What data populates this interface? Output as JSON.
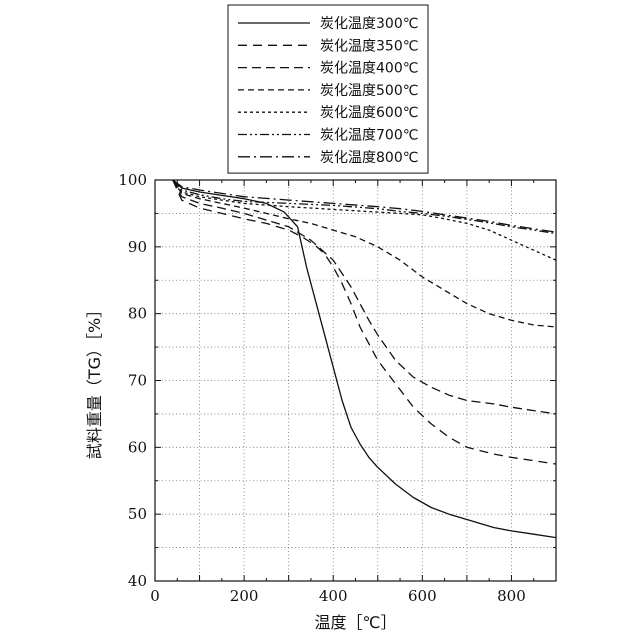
{
  "chart_data": {
    "type": "line",
    "xlabel": "温度［℃］",
    "ylabel": "試料重量（TG）［%］",
    "xlim": [
      0,
      900
    ],
    "ylim": [
      40,
      100
    ],
    "xticks": [
      0,
      200,
      400,
      600,
      800
    ],
    "yticks": [
      40,
      50,
      60,
      70,
      80,
      90,
      100
    ],
    "grid": true,
    "legend_position": "top-center",
    "series": [
      {
        "name": "炭化温度300℃",
        "dash": "",
        "x": [
          40,
          60,
          100,
          150,
          200,
          250,
          290,
          320,
          340,
          360,
          380,
          400,
          420,
          440,
          460,
          480,
          500,
          540,
          580,
          620,
          660,
          700,
          760,
          800,
          850,
          900
        ],
        "y": [
          100,
          98.8,
          98.2,
          97.7,
          97.2,
          96.5,
          95.2,
          93.0,
          87.0,
          82.0,
          77.0,
          72.0,
          67.0,
          63.0,
          60.5,
          58.5,
          57.0,
          54.5,
          52.5,
          51.0,
          50.0,
          49.2,
          48.0,
          47.5,
          47.0,
          46.5
        ]
      },
      {
        "name": "炭化温度350℃",
        "dash": "9,6",
        "x": [
          40,
          60,
          100,
          150,
          200,
          250,
          300,
          330,
          360,
          380,
          400,
          420,
          440,
          460,
          480,
          500,
          540,
          580,
          620,
          660,
          700,
          760,
          800,
          850,
          900
        ],
        "y": [
          100,
          97.0,
          95.8,
          95.0,
          94.2,
          93.5,
          92.5,
          91.5,
          90.2,
          89.0,
          87.0,
          84.5,
          81.5,
          78.0,
          75.5,
          73.0,
          69.5,
          66.0,
          63.5,
          61.5,
          60.0,
          59.0,
          58.5,
          58.0,
          57.5
        ]
      },
      {
        "name": "炭化温度400℃",
        "dash": "9,5",
        "x": [
          40,
          60,
          100,
          150,
          200,
          250,
          300,
          350,
          400,
          440,
          480,
          500,
          540,
          580,
          620,
          660,
          700,
          760,
          800,
          850,
          900
        ],
        "y": [
          100,
          97.5,
          96.5,
          95.8,
          95.0,
          94.0,
          93.0,
          91.0,
          88.0,
          84.0,
          79.0,
          76.8,
          73.0,
          70.5,
          69.0,
          67.8,
          67.0,
          66.5,
          66.0,
          65.5,
          65.0
        ]
      },
      {
        "name": "炭化温度500℃",
        "dash": "6,4",
        "x": [
          40,
          60,
          100,
          150,
          200,
          250,
          300,
          350,
          400,
          450,
          500,
          550,
          600,
          650,
          700,
          750,
          800,
          850,
          900
        ],
        "y": [
          100,
          98.0,
          97.2,
          96.5,
          95.8,
          95.0,
          94.2,
          93.5,
          92.5,
          91.5,
          90.0,
          88.0,
          85.5,
          83.5,
          81.5,
          80.0,
          79.0,
          78.3,
          78.0
        ]
      },
      {
        "name": "炭化温度600℃",
        "dash": "3,3",
        "x": [
          40,
          60,
          100,
          150,
          200,
          300,
          400,
          500,
          550,
          600,
          650,
          700,
          750,
          800,
          850,
          900
        ],
        "y": [
          100,
          98.2,
          97.5,
          97.0,
          96.5,
          96.0,
          95.6,
          95.2,
          95.0,
          94.8,
          94.2,
          93.5,
          92.5,
          91.0,
          89.5,
          88.0
        ]
      },
      {
        "name": "炭化温度700℃",
        "dash": "9,3,2,3,2,3",
        "x": [
          40,
          60,
          100,
          150,
          200,
          300,
          400,
          500,
          550,
          600,
          650,
          700,
          750,
          800,
          850,
          900
        ],
        "y": [
          100,
          98.5,
          97.8,
          97.2,
          96.8,
          96.5,
          96.2,
          95.7,
          95.3,
          95.0,
          94.6,
          94.1,
          93.6,
          93.0,
          92.5,
          92.0
        ]
      },
      {
        "name": "炭化温度800℃",
        "dash": "12,4,2,4",
        "x": [
          40,
          60,
          100,
          150,
          200,
          300,
          400,
          500,
          550,
          600,
          650,
          700,
          750,
          800,
          850,
          900
        ],
        "y": [
          100,
          99.0,
          98.5,
          98.0,
          97.5,
          97.0,
          96.5,
          96.0,
          95.7,
          95.3,
          94.8,
          94.3,
          93.8,
          93.2,
          92.7,
          92.2
        ]
      }
    ]
  }
}
